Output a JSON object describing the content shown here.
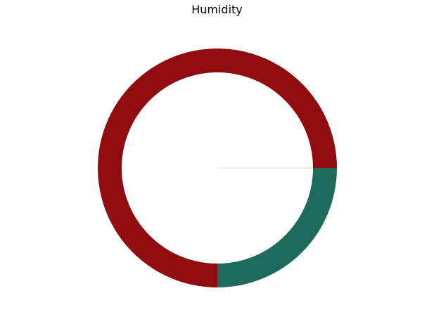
{
  "chart_data": {
    "type": "pie",
    "title": "Humidity",
    "donut": true,
    "values": [
      75,
      25
    ],
    "colors": [
      "#8f0d0f",
      "#1e6b5c"
    ],
    "legend": false,
    "grid": false
  }
}
